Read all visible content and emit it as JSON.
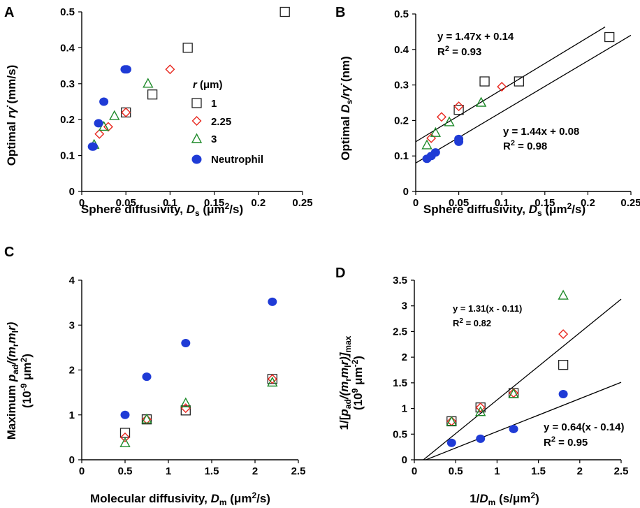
{
  "colors": {
    "sphere1": "#222222",
    "sphere2_25": "#e8271e",
    "sphere3": "#1e8a2a",
    "neutrophil": "#1f3bd6"
  },
  "chart_data": [
    {
      "panel": "A",
      "type": "scatter",
      "xlabel_pre": "Sphere diffusivity, ",
      "xlabel_sym": "D",
      "xlabel_sub": "s",
      "xlabel_unit_pre": " (μm",
      "xlabel_unit_sup": "2",
      "xlabel_unit_post": "/s)",
      "ylabel_pre": "Optimal ",
      "ylabel_sym": "rγ̇",
      "ylabel_post": " (mm/s)",
      "xlim": [
        0,
        0.25
      ],
      "ylim": [
        0,
        0.5
      ],
      "xticks": [
        "0",
        "0.05",
        "0.1",
        "0.15",
        "0.2",
        "0.25"
      ],
      "xtick_values": [
        0,
        0.05,
        0.1,
        0.15,
        0.2,
        0.25
      ],
      "yticks": [
        "0",
        "0.1",
        "0.2",
        "0.3",
        "0.4",
        "0.5"
      ],
      "ytick_values": [
        0,
        0.1,
        0.2,
        0.3,
        0.4,
        0.5
      ],
      "legend_title_sym": "r",
      "legend_title_unit": " (μm)",
      "series": [
        {
          "name": "1",
          "marker": "square",
          "color": "#222222",
          "x": [
            0.05,
            0.08,
            0.12,
            0.23
          ],
          "y": [
            0.22,
            0.27,
            0.4,
            0.5
          ]
        },
        {
          "name": "2.25",
          "marker": "diamond",
          "color": "#e8271e",
          "x": [
            0.02,
            0.03,
            0.05,
            0.1
          ],
          "y": [
            0.16,
            0.18,
            0.22,
            0.34
          ]
        },
        {
          "name": "3",
          "marker": "triangle",
          "color": "#1e8a2a",
          "x": [
            0.014,
            0.025,
            0.037,
            0.075
          ],
          "y": [
            0.13,
            0.18,
            0.21,
            0.3
          ]
        },
        {
          "name": "Neutrophil",
          "marker": "circle",
          "color": "#1f3bd6",
          "x": [
            0.012,
            0.013,
            0.019,
            0.025,
            0.049,
            0.051
          ],
          "y": [
            0.125,
            0.125,
            0.19,
            0.25,
            0.34,
            0.34
          ]
        }
      ]
    },
    {
      "panel": "B",
      "type": "scatter",
      "xlabel_pre": "Sphere diffusivity, ",
      "xlabel_sym": "D",
      "xlabel_sub": "s",
      "xlabel_unit_pre": " (μm",
      "xlabel_unit_sup": "2",
      "xlabel_unit_post": "/s)",
      "ylabel_pre": "Optimal ",
      "ylabel_sym": "D",
      "ylabel_sub": "s",
      "ylabel_mid": "/rγ̇",
      "ylabel_post": " (nm)",
      "xlim": [
        0,
        0.25
      ],
      "ylim": [
        0,
        0.5
      ],
      "xticks": [
        "0",
        "0.05",
        "0.1",
        "0.15",
        "0.2",
        "0.25"
      ],
      "xtick_values": [
        0,
        0.05,
        0.1,
        0.15,
        0.2,
        0.25
      ],
      "yticks": [
        "0",
        "0.1",
        "0.2",
        "0.3",
        "0.4",
        "0.5"
      ],
      "ytick_values": [
        0,
        0.1,
        0.2,
        0.3,
        0.4,
        0.5
      ],
      "fits": [
        {
          "slope": 1.47,
          "intercept": 0.14,
          "x_range": [
            0,
            0.22
          ],
          "eq": "y = 1.47x + 0.14",
          "r2_pre": "R",
          "r2_sup": "2",
          "r2_post": " = 0.93"
        },
        {
          "slope": 1.44,
          "intercept": 0.08,
          "x_range": [
            0,
            0.25
          ],
          "eq": "y = 1.44x + 0.08",
          "r2_pre": "R",
          "r2_sup": "2",
          "r2_post": " = 0.98"
        }
      ],
      "series": [
        {
          "marker": "square",
          "color": "#222222",
          "x": [
            0.05,
            0.08,
            0.12,
            0.225
          ],
          "y": [
            0.23,
            0.31,
            0.31,
            0.435
          ]
        },
        {
          "marker": "diamond",
          "color": "#e8271e",
          "x": [
            0.018,
            0.03,
            0.05,
            0.1
          ],
          "y": [
            0.15,
            0.21,
            0.24,
            0.295
          ]
        },
        {
          "marker": "triangle",
          "color": "#1e8a2a",
          "x": [
            0.013,
            0.023,
            0.039,
            0.076
          ],
          "y": [
            0.13,
            0.165,
            0.195,
            0.25
          ]
        },
        {
          "marker": "circle",
          "color": "#1f3bd6",
          "x": [
            0.013,
            0.018,
            0.023,
            0.05,
            0.05
          ],
          "y": [
            0.092,
            0.1,
            0.11,
            0.14,
            0.148
          ]
        }
      ]
    },
    {
      "panel": "C",
      "type": "scatter",
      "xlabel_pre": "Molecular diffusivity, ",
      "xlabel_sym": "D",
      "xlabel_sub": "m",
      "xlabel_unit_pre": " (μm",
      "xlabel_unit_sup": "2",
      "xlabel_unit_post": "/s)",
      "ylabel_pre": "Maximum ",
      "ylabel_sym": "p",
      "ylabel_sub": "ad",
      "ylabel_mid": "/(m",
      "ylabel_sub2": "r",
      "ylabel_mid2": "m",
      "ylabel_sub3": "l",
      "ylabel_end": "r)",
      "ylabel2_pre": "(10",
      "ylabel2_sup": "-9",
      "ylabel2_post": " μm",
      "ylabel2_sup2": "2",
      "ylabel2_end": ")",
      "xlim": [
        0,
        2.5
      ],
      "ylim": [
        0,
        4
      ],
      "xticks": [
        "0",
        "0.5",
        "1",
        "1.5",
        "2",
        "2.5"
      ],
      "xtick_values": [
        0,
        0.5,
        1,
        1.5,
        2,
        2.5
      ],
      "yticks": [
        "0",
        "1",
        "2",
        "3",
        "4"
      ],
      "ytick_values": [
        0,
        1,
        2,
        3,
        4
      ],
      "series": [
        {
          "marker": "square",
          "color": "#222222",
          "x": [
            0.5,
            0.75,
            1.2,
            2.2
          ],
          "y": [
            0.6,
            0.9,
            1.1,
            1.8
          ]
        },
        {
          "marker": "diamond",
          "color": "#e8271e",
          "x": [
            0.5,
            0.75,
            1.2,
            2.2
          ],
          "y": [
            0.5,
            0.9,
            1.15,
            1.8
          ]
        },
        {
          "marker": "triangle",
          "color": "#1e8a2a",
          "x": [
            0.5,
            0.75,
            1.2,
            2.2
          ],
          "y": [
            0.37,
            0.9,
            1.26,
            1.72
          ]
        },
        {
          "marker": "circle",
          "color": "#1f3bd6",
          "x": [
            0.5,
            0.75,
            1.2,
            2.2
          ],
          "y": [
            1.0,
            1.85,
            2.6,
            3.52
          ]
        }
      ]
    },
    {
      "panel": "D",
      "type": "scatter",
      "xlabel_pre": "1/",
      "xlabel_sym": "D",
      "xlabel_sub": "m",
      "xlabel_unit_pre": " (s/μm",
      "xlabel_unit_sup": "2",
      "xlabel_unit_post": ")",
      "ylabel_pre": "1/[",
      "ylabel_sym": "p",
      "ylabel_sub": "ad",
      "ylabel_mid": "/(m",
      "ylabel_sub2": "r",
      "ylabel_mid2": "m",
      "ylabel_sub3": "l",
      "ylabel_end": "r)]",
      "ylabel_sub4": "max",
      "ylabel2_pre": "(10",
      "ylabel2_sup": "9",
      "ylabel2_post": " μm",
      "ylabel2_sup2": "-2",
      "ylabel2_end": ")",
      "xlim": [
        0,
        2.5
      ],
      "ylim": [
        0,
        3.5
      ],
      "xticks": [
        "0",
        "0.5",
        "1",
        "1.5",
        "2",
        "2.5"
      ],
      "xtick_values": [
        0,
        0.5,
        1,
        1.5,
        2,
        2.5
      ],
      "yticks": [
        "0",
        "0.5",
        "1",
        "1.5",
        "2",
        "2.5",
        "3",
        "3.5"
      ],
      "ytick_values": [
        0,
        0.5,
        1,
        1.5,
        2,
        2.5,
        3,
        3.5
      ],
      "fits": [
        {
          "slope": 1.31,
          "x0": 0.11,
          "x_range": [
            0.11,
            2.5
          ],
          "eq": "y = 1.31(x - 0.11)",
          "r2_pre": "R",
          "r2_sup": "2",
          "r2_post": " = 0.82"
        },
        {
          "slope": 0.64,
          "x0": 0.14,
          "x_range": [
            0.14,
            2.5
          ],
          "eq": "y = 0.64(x - 0.14)",
          "r2_pre": "R",
          "r2_sup": "2",
          "r2_post": " = 0.95"
        }
      ],
      "series": [
        {
          "marker": "square",
          "color": "#222222",
          "x": [
            0.45,
            0.8,
            1.2,
            1.8
          ],
          "y": [
            0.75,
            1.02,
            1.3,
            1.85
          ]
        },
        {
          "marker": "diamond",
          "color": "#e8271e",
          "x": [
            0.45,
            0.8,
            1.2,
            1.8
          ],
          "y": [
            0.75,
            1.02,
            1.3,
            2.45
          ]
        },
        {
          "marker": "triangle",
          "color": "#1e8a2a",
          "x": [
            0.45,
            0.8,
            1.2,
            1.8
          ],
          "y": [
            0.74,
            0.93,
            1.28,
            3.2
          ]
        },
        {
          "marker": "circle",
          "color": "#1f3bd6",
          "x": [
            0.45,
            0.8,
            1.2,
            1.8
          ],
          "y": [
            0.33,
            0.41,
            0.6,
            1.28
          ]
        }
      ]
    }
  ]
}
